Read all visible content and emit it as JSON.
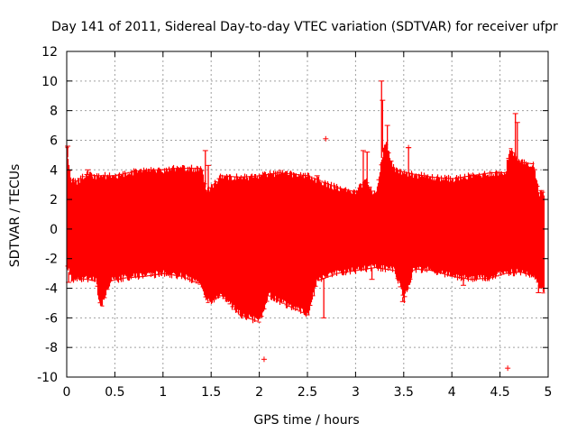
{
  "chart_data": {
    "type": "scatter",
    "title": "Day 141 of 2011, Sidereal Day-to-day VTEC variation (SDTVAR) for receiver ufpr",
    "xlabel": "GPS time / hours",
    "ylabel": "SDTVAR / TECUs",
    "xlim": [
      0,
      5
    ],
    "ylim": [
      -10,
      12
    ],
    "x_ticks": [
      0,
      0.5,
      1,
      1.5,
      2,
      2.5,
      3,
      3.5,
      4,
      4.5,
      5
    ],
    "x_tick_labels": [
      "0",
      "0.5",
      "1",
      "1.5",
      "2",
      "2.5",
      "3",
      "3.5",
      "4",
      "4.5",
      "5"
    ],
    "y_ticks": [
      -10,
      -8,
      -6,
      -4,
      -2,
      0,
      2,
      4,
      6,
      8,
      10,
      12
    ],
    "y_tick_labels": [
      "-10",
      "-8",
      "-6",
      "-4",
      "-2",
      "0",
      "2",
      "4",
      "6",
      "8",
      "10",
      "12"
    ],
    "grid": true,
    "series_color": "#ff0000",
    "series": [
      {
        "name": "SDTVAR",
        "envelope_upper": [
          [
            0.0,
            5.5
          ],
          [
            0.02,
            4.2
          ],
          [
            0.05,
            3.3
          ],
          [
            0.1,
            3.2
          ],
          [
            0.2,
            3.7
          ],
          [
            0.3,
            3.6
          ],
          [
            0.4,
            3.6
          ],
          [
            0.5,
            3.6
          ],
          [
            0.7,
            3.9
          ],
          [
            0.9,
            4.0
          ],
          [
            1.0,
            4.0
          ],
          [
            1.1,
            4.1
          ],
          [
            1.2,
            4.1
          ],
          [
            1.4,
            4.1
          ],
          [
            1.45,
            2.5
          ],
          [
            1.6,
            3.6
          ],
          [
            1.8,
            3.5
          ],
          [
            2.0,
            3.6
          ],
          [
            2.2,
            3.8
          ],
          [
            2.5,
            3.6
          ],
          [
            2.8,
            2.8
          ],
          [
            3.0,
            2.5
          ],
          [
            3.1,
            3.3
          ],
          [
            3.2,
            2.3
          ],
          [
            3.25,
            4.0
          ],
          [
            3.3,
            6.0
          ],
          [
            3.4,
            4.0
          ],
          [
            3.6,
            3.7
          ],
          [
            3.8,
            3.5
          ],
          [
            4.0,
            3.4
          ],
          [
            4.2,
            3.6
          ],
          [
            4.4,
            3.8
          ],
          [
            4.55,
            3.8
          ],
          [
            4.6,
            5.5
          ],
          [
            4.7,
            4.5
          ],
          [
            4.85,
            4.4
          ],
          [
            4.9,
            2.4
          ],
          [
            4.95,
            2.5
          ]
        ],
        "envelope_lower": [
          [
            0.0,
            -2.5
          ],
          [
            0.05,
            -3.5
          ],
          [
            0.1,
            -3.3
          ],
          [
            0.2,
            -3.4
          ],
          [
            0.3,
            -3.5
          ],
          [
            0.35,
            -5.5
          ],
          [
            0.45,
            -3.5
          ],
          [
            0.6,
            -3.3
          ],
          [
            0.8,
            -3.2
          ],
          [
            1.0,
            -3.0
          ],
          [
            1.2,
            -3.2
          ],
          [
            1.4,
            -3.8
          ],
          [
            1.45,
            -5.0
          ],
          [
            1.6,
            -4.5
          ],
          [
            1.8,
            -5.8
          ],
          [
            2.0,
            -6.3
          ],
          [
            2.1,
            -4.5
          ],
          [
            2.3,
            -5.2
          ],
          [
            2.5,
            -5.8
          ],
          [
            2.6,
            -3.5
          ],
          [
            2.8,
            -3.0
          ],
          [
            3.0,
            -2.8
          ],
          [
            3.2,
            -2.6
          ],
          [
            3.4,
            -2.8
          ],
          [
            3.5,
            -4.8
          ],
          [
            3.6,
            -2.7
          ],
          [
            3.8,
            -2.8
          ],
          [
            4.0,
            -3.2
          ],
          [
            4.2,
            -3.4
          ],
          [
            4.4,
            -3.3
          ],
          [
            4.55,
            -3.0
          ],
          [
            4.7,
            -2.9
          ],
          [
            4.85,
            -3.1
          ],
          [
            4.95,
            -4.4
          ]
        ],
        "spikes": [
          {
            "x": 0.01,
            "y": 5.6
          },
          {
            "x": 0.02,
            "y": -3.6
          },
          {
            "x": 0.22,
            "y": 4.0
          },
          {
            "x": 1.44,
            "y": 5.3
          },
          {
            "x": 1.47,
            "y": 4.3
          },
          {
            "x": 2.6,
            "y": 3.6
          },
          {
            "x": 2.67,
            "y": -6.0
          },
          {
            "x": 3.08,
            "y": 5.3
          },
          {
            "x": 3.12,
            "y": 5.2
          },
          {
            "x": 3.17,
            "y": -3.4
          },
          {
            "x": 3.27,
            "y": 10.0
          },
          {
            "x": 3.28,
            "y": 8.7
          },
          {
            "x": 3.33,
            "y": 7.0
          },
          {
            "x": 3.49,
            "y": -4.9
          },
          {
            "x": 3.55,
            "y": 5.5
          },
          {
            "x": 4.12,
            "y": -3.8
          },
          {
            "x": 4.66,
            "y": 7.8
          },
          {
            "x": 4.68,
            "y": 7.2
          },
          {
            "x": 4.9,
            "y": -4.3
          },
          {
            "x": 4.93,
            "y": 2.6
          }
        ],
        "outliers": [
          {
            "x": 2.05,
            "y": -8.8
          },
          {
            "x": 2.69,
            "y": 6.1
          },
          {
            "x": 3.55,
            "y": 5.5
          },
          {
            "x": 4.58,
            "y": -9.4
          }
        ]
      }
    ]
  }
}
